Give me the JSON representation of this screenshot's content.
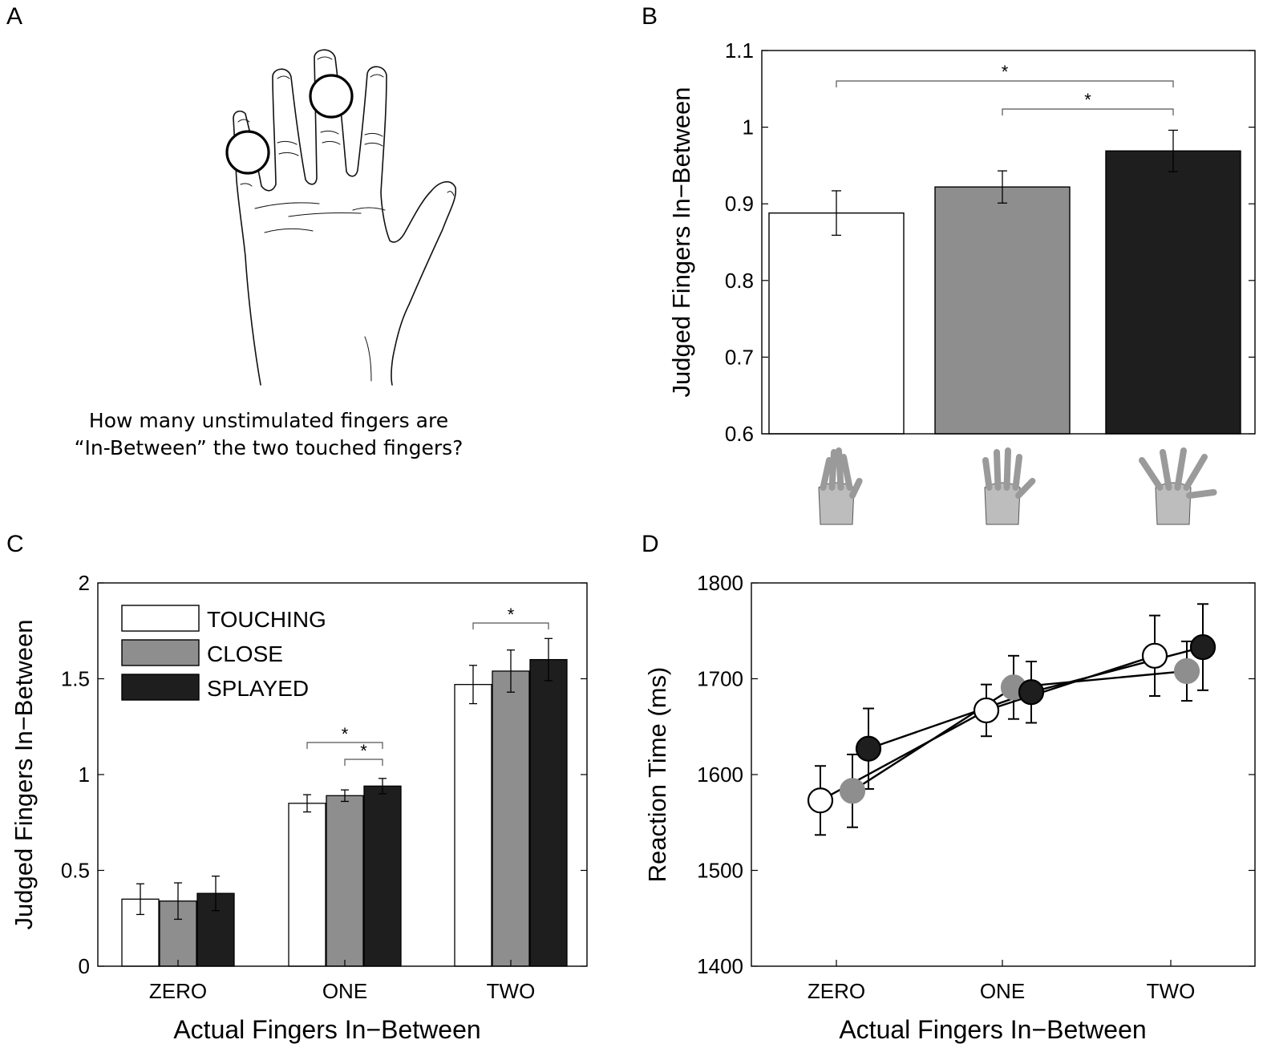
{
  "panels": {
    "a": {
      "letter": "A",
      "question_line1": "How many unstimulated fingers are",
      "question_line2": "“In-Between” the two touched fingers?"
    },
    "b": {
      "letter": "B"
    },
    "c": {
      "letter": "C"
    },
    "d": {
      "letter": "D"
    }
  },
  "colors": {
    "touching": "#ffffff",
    "close": "#8e8e8e",
    "splayed": "#1e1e1e",
    "axis": "#000000"
  },
  "chart_data": [
    {
      "id": "B",
      "type": "bar",
      "ylabel": "Judged Fingers In−Between",
      "ylim": [
        0.6,
        1.1
      ],
      "yticks": [
        "0.6",
        "0.7",
        "0.8",
        "0.9",
        "1",
        "1.1"
      ],
      "categories": [
        "touching hand icon",
        "close hand icon",
        "splayed hand icon"
      ],
      "series": [
        {
          "values": [
            0.888,
            0.922,
            0.969
          ],
          "errors": [
            0.029,
            0.021,
            0.027
          ]
        }
      ],
      "significance": [
        {
          "from": 0,
          "to": 2,
          "label": "*"
        },
        {
          "from": 1,
          "to": 2,
          "label": "*"
        }
      ]
    },
    {
      "id": "C",
      "type": "bar",
      "xlabel": "Actual Fingers In−Between",
      "ylabel": "Judged Fingers In−Between",
      "ylim": [
        0,
        2
      ],
      "yticks": [
        "0",
        "0.5",
        "1",
        "1.5",
        "2"
      ],
      "categories": [
        "ZERO",
        "ONE",
        "TWO"
      ],
      "legend": {
        "position": "top-left"
      },
      "series": [
        {
          "name": "TOUCHING",
          "values": [
            0.35,
            0.85,
            1.47
          ],
          "errors": [
            0.08,
            0.045,
            0.1
          ]
        },
        {
          "name": "CLOSE",
          "values": [
            0.34,
            0.89,
            1.54
          ],
          "errors": [
            0.095,
            0.03,
            0.11
          ]
        },
        {
          "name": "SPLAYED",
          "values": [
            0.38,
            0.94,
            1.6
          ],
          "errors": [
            0.09,
            0.04,
            0.11
          ]
        }
      ],
      "significance": [
        {
          "group": 1,
          "from": 0,
          "to": 2,
          "label": "*"
        },
        {
          "group": 1,
          "from": 1,
          "to": 2,
          "label": "*"
        },
        {
          "group": 2,
          "from": 0,
          "to": 2,
          "label": "*"
        }
      ]
    },
    {
      "id": "D",
      "type": "line",
      "xlabel": "Actual Fingers In−Between",
      "ylabel": "Reaction Time (ms)",
      "ylim": [
        1400,
        1800
      ],
      "yticks": [
        "1400",
        "1500",
        "1600",
        "1700",
        "1800"
      ],
      "categories": [
        "ZERO",
        "ONE",
        "TWO"
      ],
      "series": [
        {
          "condition": "touching",
          "values": [
            1573,
            1667,
            1724
          ],
          "errors": [
            36,
            27,
            42
          ]
        },
        {
          "condition": "close",
          "values": [
            1583,
            1691,
            1708
          ],
          "errors": [
            38,
            33,
            31
          ]
        },
        {
          "condition": "splayed",
          "values": [
            1627,
            1686,
            1733
          ],
          "errors": [
            42,
            32,
            45
          ]
        }
      ]
    }
  ]
}
